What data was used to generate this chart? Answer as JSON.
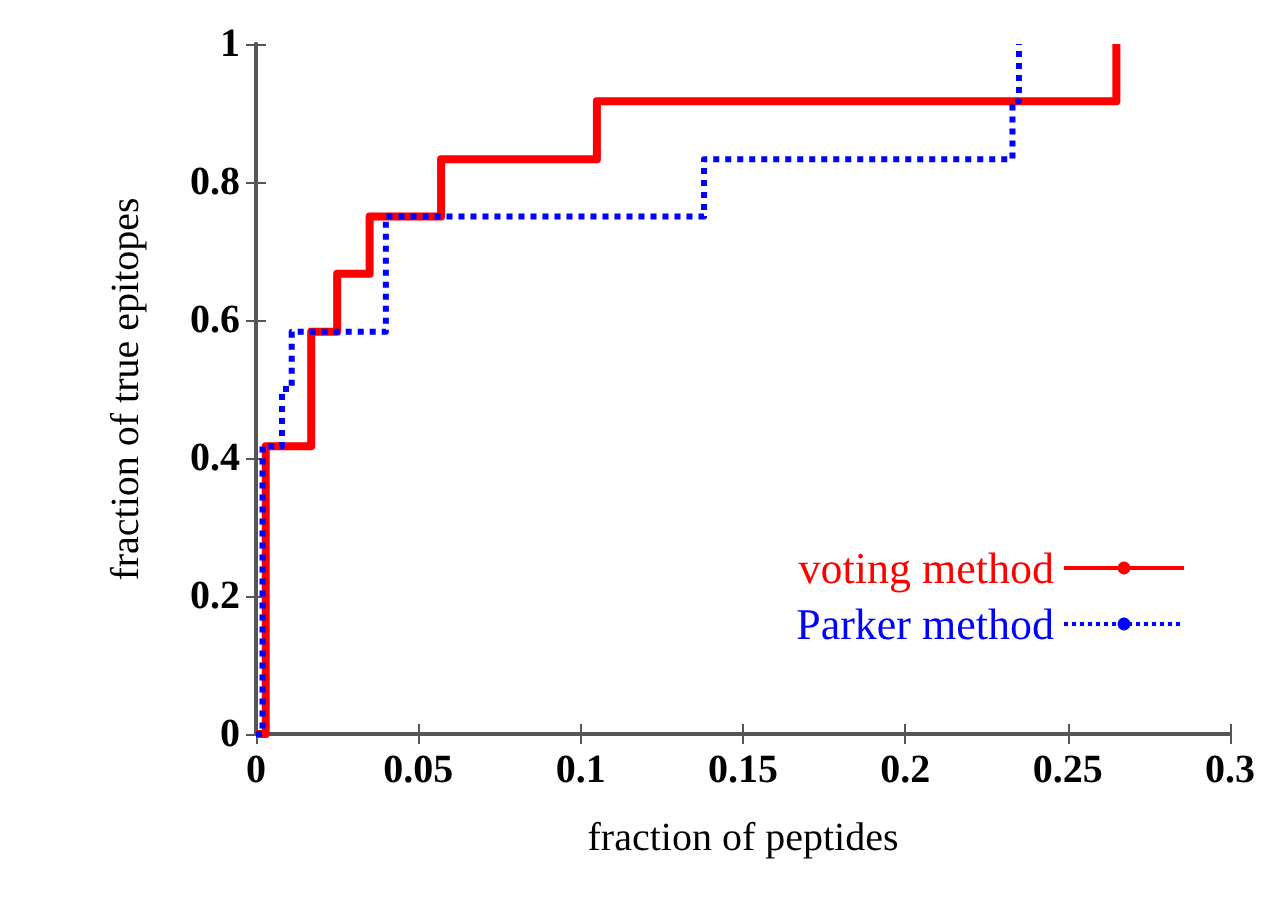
{
  "chart_data": {
    "type": "step",
    "xlabel": "fraction of peptides",
    "ylabel": "fraction of true epitopes",
    "xlim": [
      0,
      0.3
    ],
    "xticks": [
      0,
      0.05,
      0.1,
      0.15,
      0.2,
      0.25,
      0.3
    ],
    "ylim": [
      0,
      1
    ],
    "yticks": [
      0,
      0.2,
      0.4,
      0.6,
      0.8,
      1
    ],
    "grid": false,
    "legend": "bottom right",
    "marker": "none",
    "series": [
      {
        "name": "voting method",
        "color": "#ff0000",
        "line_style": "solid",
        "x": [
          0,
          0.003,
          0.017,
          0.025,
          0.035,
          0.057,
          0.105,
          0.265
        ],
        "values": [
          0,
          0.417,
          0.583,
          0.667,
          0.75,
          0.833,
          0.917,
          1
        ]
      },
      {
        "name": "Parker method",
        "color": "#0000ff",
        "line_style": "dotted",
        "x": [
          0,
          0.002,
          0.008,
          0.011,
          0.04,
          0.138,
          0.233,
          0.235
        ],
        "values": [
          0,
          0.417,
          0.5,
          0.583,
          0.75,
          0.833,
          0.917,
          1
        ]
      }
    ]
  }
}
